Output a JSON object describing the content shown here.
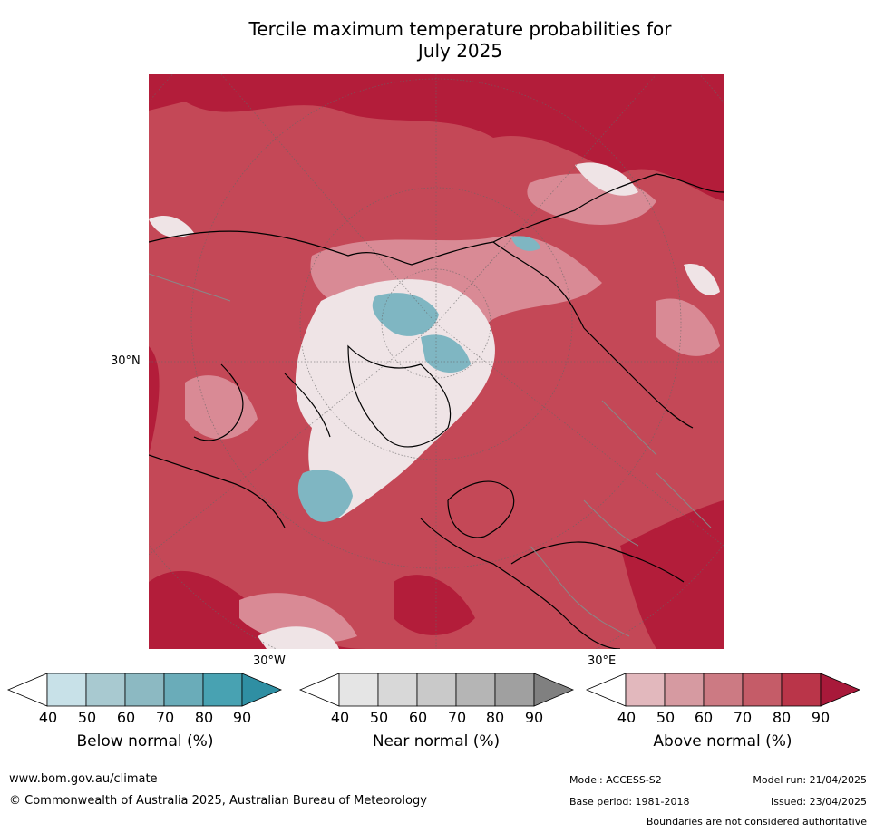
{
  "title": {
    "line1": "Tercile maximum temperature probabilities for",
    "line2": "July 2025"
  },
  "map": {
    "lat_label": "30°N",
    "lon_labels": [
      "30°W",
      "30°E"
    ]
  },
  "colorbars": [
    {
      "label": "Below normal (%)",
      "ticks": [
        "40",
        "50",
        "60",
        "70",
        "80",
        "90"
      ],
      "colors": [
        "#ffffff",
        "#c8e1e8",
        "#a8c9d0",
        "#8cb9c2",
        "#6aacb9",
        "#48a2b2",
        "#2f8fa3"
      ]
    },
    {
      "label": "Near normal (%)",
      "ticks": [
        "40",
        "50",
        "60",
        "70",
        "80",
        "90"
      ],
      "colors": [
        "#ffffff",
        "#e5e5e5",
        "#d8d8d8",
        "#c9c9c9",
        "#b5b5b5",
        "#a0a0a0",
        "#808080"
      ]
    },
    {
      "label": "Above normal (%)",
      "ticks": [
        "40",
        "50",
        "60",
        "70",
        "80",
        "90"
      ],
      "colors": [
        "#ffffff",
        "#e2b8bd",
        "#d69aa1",
        "#cc7a83",
        "#c55c68",
        "#ba3549",
        "#a8193a"
      ]
    }
  ],
  "footer": {
    "website": "www.bom.gov.au/climate",
    "copyright": "© Commonwealth of Australia 2025, Australian Bureau of Meteorology",
    "model": "Model: ACCESS-S2",
    "base_period": "Base period: 1981-2018",
    "model_run": "Model run: 21/04/2025",
    "issued": "Issued: 23/04/2025",
    "disclaimer": "Boundaries are not considered authoritative"
  }
}
